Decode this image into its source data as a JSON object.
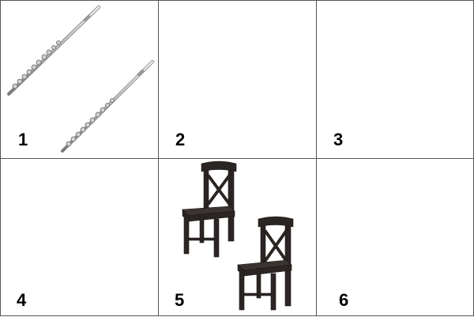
{
  "panels": [
    {
      "label": "1",
      "icon": "flute-icon"
    },
    {
      "label": "2",
      "icon": ""
    },
    {
      "label": "3",
      "icon": ""
    },
    {
      "label": "4",
      "icon": ""
    },
    {
      "label": "5",
      "icon": "chair-icon"
    },
    {
      "label": "6",
      "icon": ""
    }
  ],
  "colors": {
    "border": "#555555",
    "flute": "#b8b8b8",
    "chair": "#2b2624"
  }
}
